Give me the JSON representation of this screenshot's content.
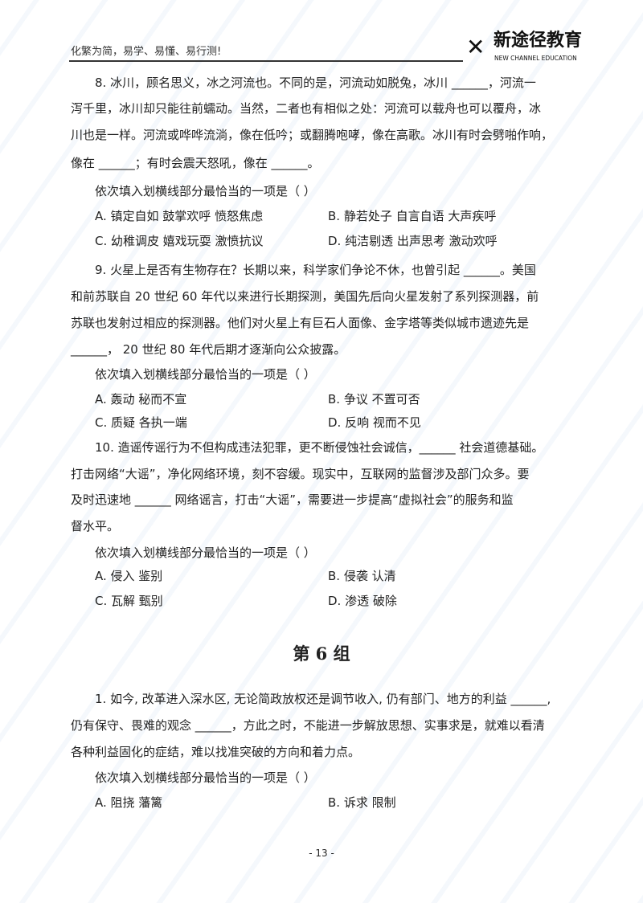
{
  "header": {
    "slogan": "化繁为简，易学、易懂、易行测!",
    "logo_cn": "新途径教育",
    "logo_en": "NEW CHANNEL EDUCATION"
  },
  "questions": [
    {
      "lines": [
        "8. 冰川，顾名思义，冰之河流也。不同的是，河流动如脱兔，冰川 ______，河流一",
        "泻千里，冰川却只能往前蠕动。当然，二者也有相似之处：河流可以载舟也可以覆舟，冰",
        "川也是一样。河流或哗哗流淌，像在低吟；或翻腾咆哮，像在高歌。冰川有时会劈啪作响，",
        "像在 ______；有时会震天怒吼，像在 ______。"
      ],
      "prompt": "依次填入划横线部分最恰当的一项是（    ）",
      "options": [
        "A.  镇定自如  鼓掌欢呼  愤怒焦虑",
        "B.  静若处子  自言自语  大声疾呼",
        "C.  幼稚调皮  嬉戏玩耍  激愤抗议",
        "D.  纯洁剔透  出声思考  激动欢呼"
      ]
    },
    {
      "lines": [
        "9.  火星上是否有生物存在？长期以来，科学家们争论不休，也曾引起 ______。美国",
        "和前苏联自  20 世纪  60 年代以来进行长期探测，美国先后向火星发射了系列探测器，前",
        "苏联也发射过相应的探测器。他们对火星上有巨石人面像、金字塔等类似城市遗迹先是",
        "______，  20 世纪  80 年代后期才逐渐向公众披露。"
      ],
      "prompt": "依次填入划横线部分最恰当的一项是（    ）",
      "options": [
        "A.  轰动  秘而不宣",
        "B.  争议  不置可否",
        "C.  质疑  各执一端",
        "D.  反响  视而不见"
      ]
    },
    {
      "lines": [
        "10.  造谣传谣行为不但构成违法犯罪，更不断侵蚀社会诚信，______  社会道德基础。",
        "打击网络“大谣”，净化网络环境，刻不容缓。现实中，互联网的监督涉及部门众多。要",
        "及时迅速地  ______  网络谣言，打击“大谣”，需要进一步提高“虚拟社会”的服务和监",
        "督水平。"
      ],
      "prompt": "依次填入划横线部分最恰当的一项是（    ）",
      "options": [
        "A.  侵入  鉴别",
        "B.  侵袭  认清",
        "C.  瓦解  甄别",
        "D.  渗透  破除"
      ]
    }
  ],
  "section_title": "第 6 组",
  "section_questions": [
    {
      "lines": [
        "1. 如今, 改革进入深水区, 无论简政放权还是调节收入, 仍有部门、地方的利益  ______,",
        "仍有保守、畏难的观念  ______，方此之时，不能进一步解放思想、实事求是，就难以看清",
        "各种利益固化的症结，难以找准突破的方向和着力点。"
      ],
      "prompt": "依次填入划横线部分最恰当的一项是（    ）",
      "options": [
        "A.  阻挠  藩篱",
        "B.  诉求  限制"
      ]
    }
  ],
  "page_number": "- 13 -"
}
